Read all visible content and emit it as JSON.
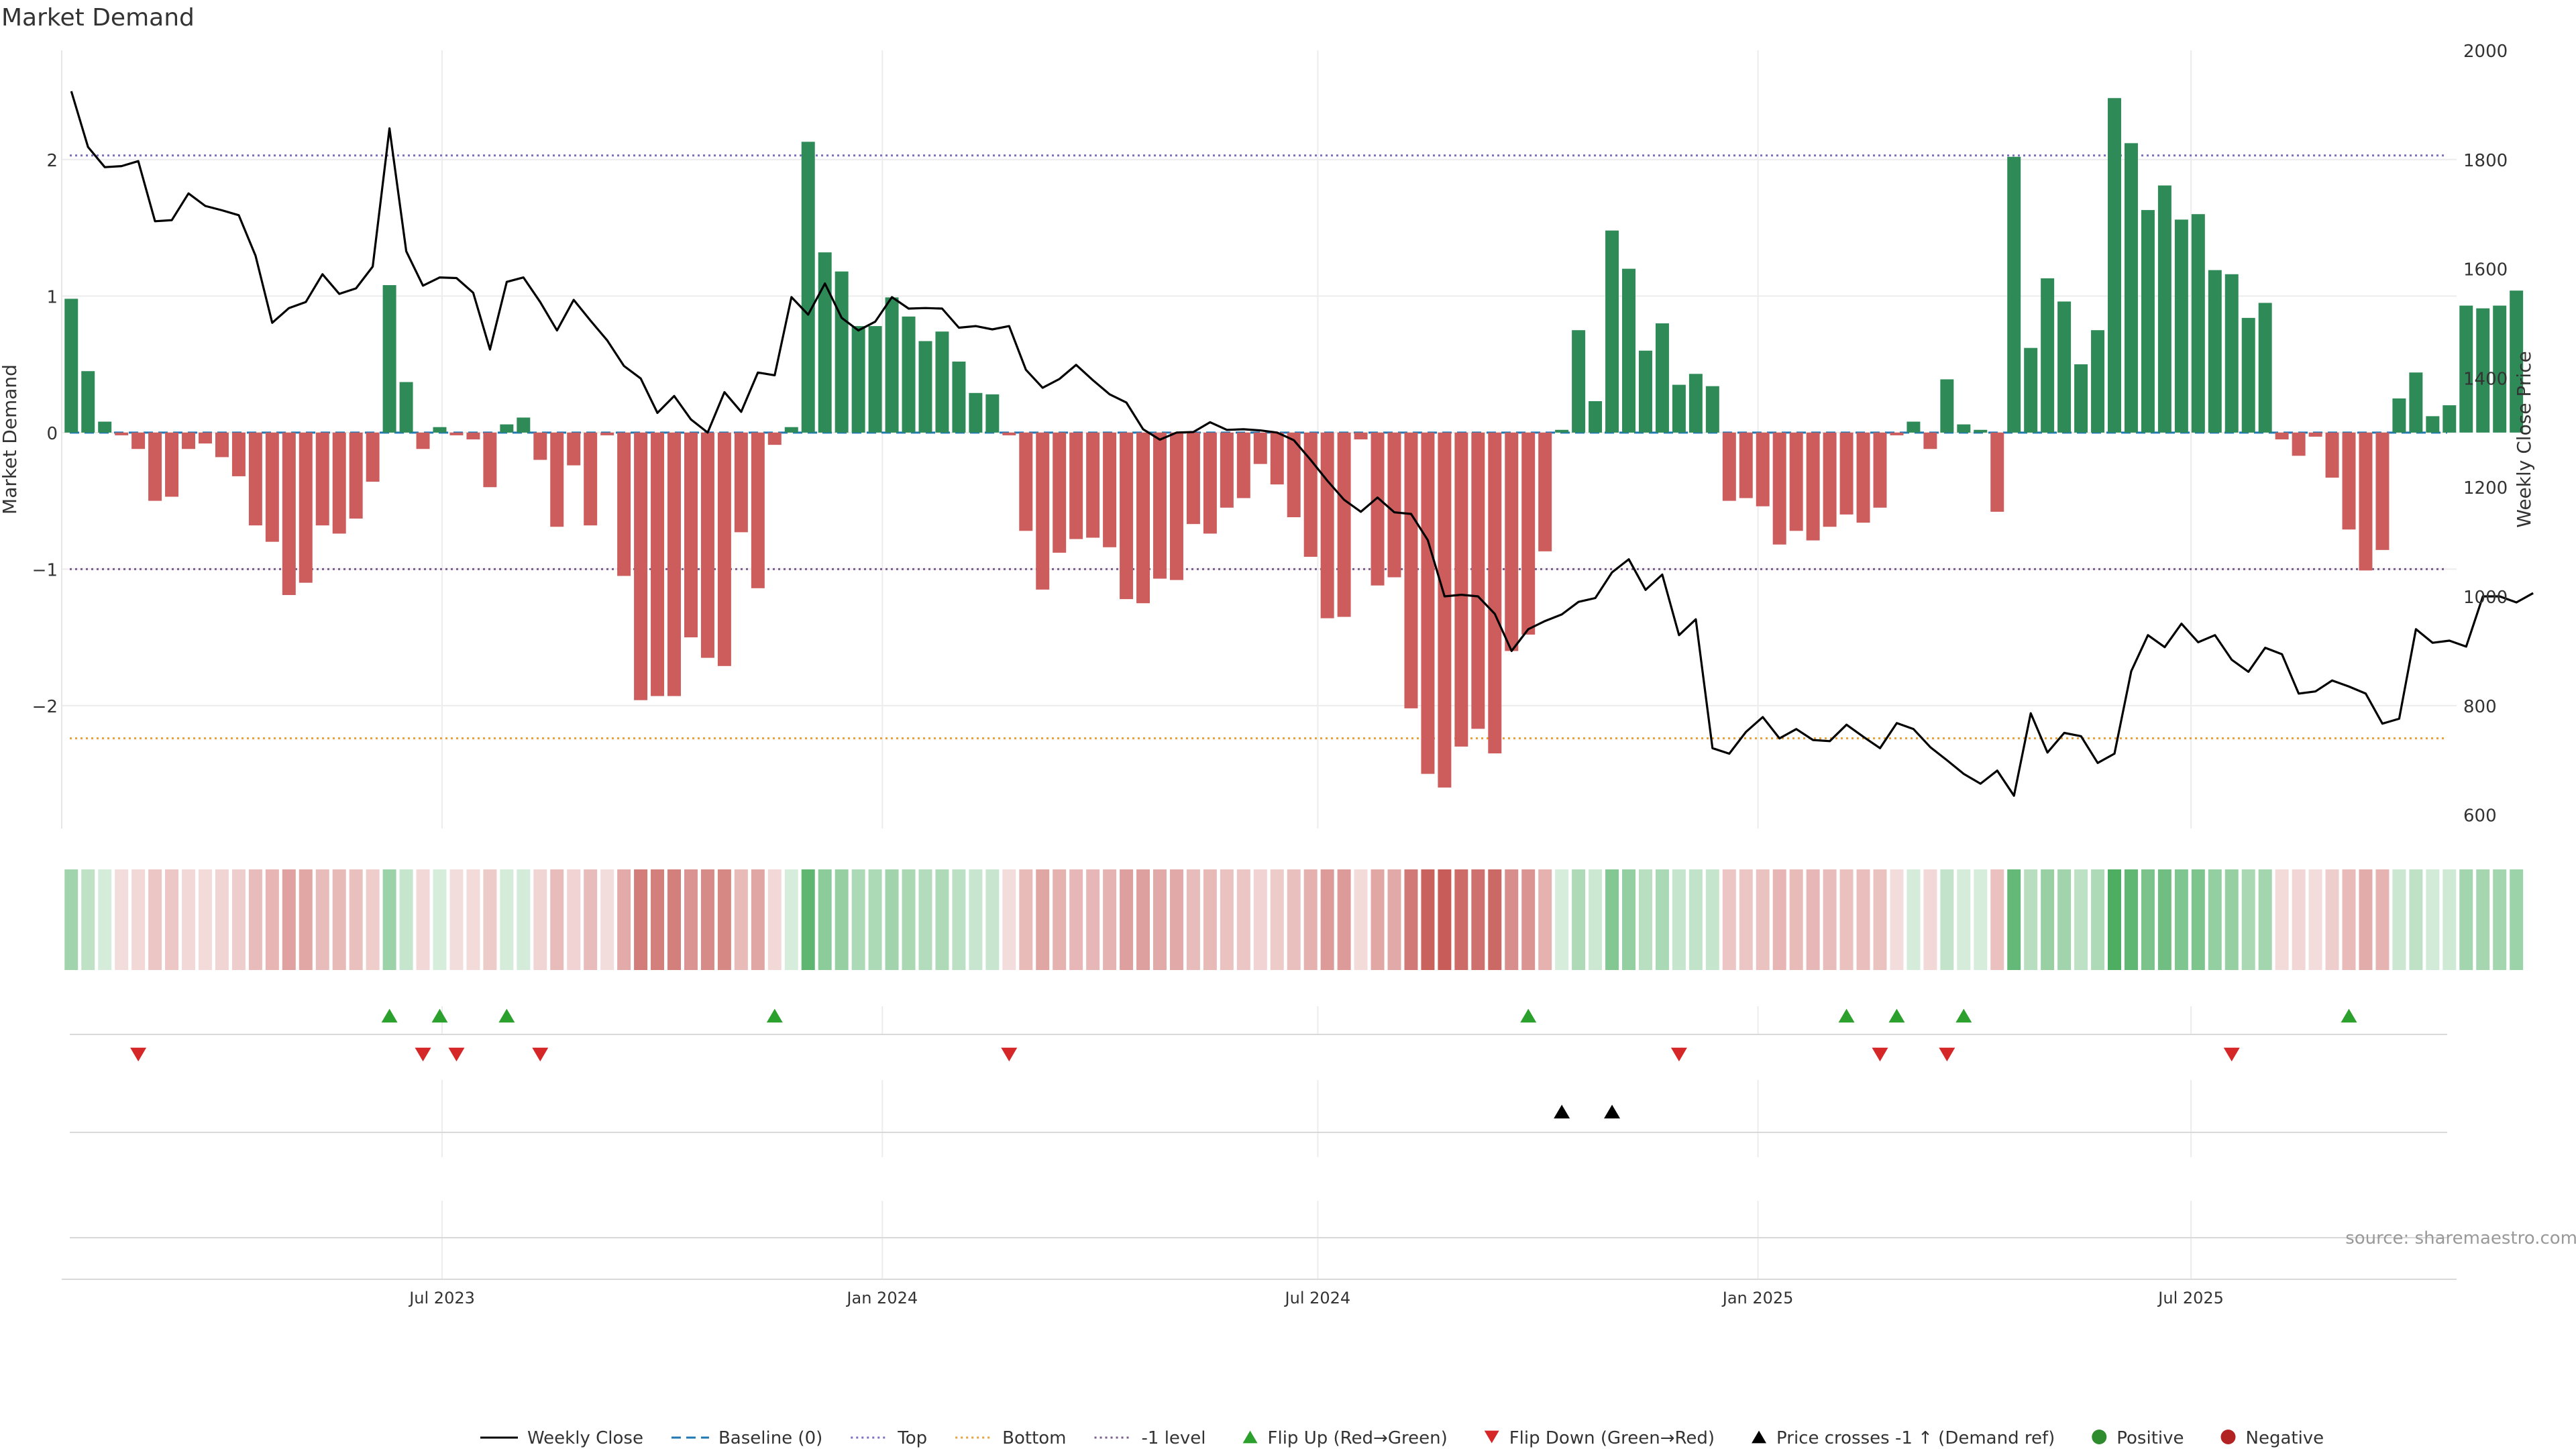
{
  "chart_data": {
    "type": "bar",
    "title": "Market Demand",
    "ylabel": "Market Demand",
    "y2label": "Weekly Close Price",
    "ylim": [
      -2.9,
      2.8
    ],
    "y2lim": [
      575,
      2000
    ],
    "yticks": [
      -2,
      -1,
      0,
      1,
      2
    ],
    "y2ticks": [
      600,
      800,
      1000,
      1200,
      1400,
      1600,
      1800,
      2000
    ],
    "xlim": [
      "2023-01-23",
      "2025-10-20"
    ],
    "xticks": [
      {
        "date": "2023-07-01",
        "label": "Jul 2023"
      },
      {
        "date": "2024-01-01",
        "label": "Jan 2024"
      },
      {
        "date": "2024-07-01",
        "label": "Jul 2024"
      },
      {
        "date": "2025-01-01",
        "label": "Jan 2025"
      },
      {
        "date": "2025-07-01",
        "label": "Jul 2025"
      }
    ],
    "start_date": "2023-01-27",
    "week_days": 7,
    "levels": {
      "top": 2.03,
      "bottom": -2.24,
      "minus_one": -1,
      "baseline": 0
    },
    "source": "source: sharemaestro.com",
    "legend": [
      {
        "label": "Weekly Close",
        "kind": "line",
        "color": "#000000"
      },
      {
        "label": "Baseline (0)",
        "kind": "dash",
        "color": "#1f77b4"
      },
      {
        "label": "Top",
        "kind": "dot",
        "color": "#7b6fc4"
      },
      {
        "label": "Bottom",
        "kind": "dot",
        "color": "#e8a23a"
      },
      {
        "label": "-1 level",
        "kind": "dot",
        "color": "#7a5c8a"
      },
      {
        "label": "Flip Up (Red→Green)",
        "kind": "tri-up",
        "color": "#2ca02c"
      },
      {
        "label": "Flip Down (Green→Red)",
        "kind": "tri-down",
        "color": "#d62728"
      },
      {
        "label": "Price crosses -1 ↑ (Demand ref)",
        "kind": "tri-up",
        "color": "#000000"
      },
      {
        "label": "Positive",
        "kind": "dot-marker",
        "color": "#2e8b2e"
      },
      {
        "label": "Negative",
        "kind": "dot-marker",
        "color": "#b22222"
      }
    ],
    "colors": {
      "positive": "#2e8b57",
      "negative": "#cd5c5c",
      "top": "#7b6fc4",
      "bottom": "#e8a23a",
      "minus_one": "#7a5c8a",
      "baseline": "#1f77b4"
    },
    "values": [
      0.98,
      0.45,
      0.08,
      -0.02,
      -0.12,
      -0.5,
      -0.47,
      -0.12,
      -0.08,
      -0.18,
      -0.32,
      -0.68,
      -0.8,
      -1.19,
      -1.1,
      -0.68,
      -0.74,
      -0.63,
      -0.36,
      1.08,
      0.37,
      -0.12,
      0.04,
      -0.02,
      -0.05,
      -0.4,
      0.06,
      0.11,
      -0.2,
      -0.69,
      -0.24,
      -0.68,
      -0.02,
      -1.05,
      -1.96,
      -1.93,
      -1.93,
      -1.5,
      -1.65,
      -1.71,
      -0.73,
      -1.14,
      -0.09,
      0.04,
      2.13,
      1.32,
      1.18,
      0.78,
      0.78,
      0.99,
      0.85,
      0.67,
      0.74,
      0.52,
      0.29,
      0.28,
      -0.02,
      -0.72,
      -1.15,
      -0.88,
      -0.78,
      -0.77,
      -0.84,
      -1.22,
      -1.25,
      -1.07,
      -1.08,
      -0.67,
      -0.74,
      -0.55,
      -0.48,
      -0.23,
      -0.38,
      -0.62,
      -0.91,
      -1.36,
      -1.35,
      -0.05,
      -1.12,
      -1.06,
      -2.02,
      -2.5,
      -2.6,
      -2.3,
      -2.17,
      -2.35,
      -1.6,
      -1.48,
      -0.87,
      0.02,
      0.75,
      0.23,
      1.48,
      1.2,
      0.6,
      0.8,
      0.35,
      0.43,
      0.34,
      -0.5,
      -0.48,
      -0.54,
      -0.82,
      -0.72,
      -0.79,
      -0.69,
      -0.6,
      -0.66,
      -0.55,
      -0.02,
      0.08,
      -0.12,
      0.39,
      0.06,
      0.02,
      -0.58,
      2.02,
      0.62,
      1.13,
      0.96,
      0.5,
      0.75,
      2.45,
      2.12,
      1.63,
      1.81,
      1.56,
      1.6,
      1.19,
      1.16,
      0.84,
      0.95,
      -0.05,
      -0.17,
      -0.03,
      -0.33,
      -0.71,
      -1.01,
      -0.86,
      0.25,
      0.44,
      0.12,
      0.2,
      0.93,
      0.91,
      0.93,
      1.04
    ],
    "weekly_close": [
      1925,
      1823,
      1786,
      1788,
      1797,
      1687,
      1689,
      1738,
      1715,
      1707,
      1698,
      1624,
      1501,
      1528,
      1539,
      1590,
      1554,
      1564,
      1604,
      1857,
      1632,
      1569,
      1584,
      1583,
      1556,
      1452,
      1576,
      1584,
      1539,
      1487,
      1543,
      1505,
      1469,
      1422,
      1399,
      1336,
      1367,
      1324,
      1300,
      1374,
      1338,
      1410,
      1405,
      1548,
      1516,
      1573,
      1510,
      1487,
      1503,
      1548,
      1527,
      1528,
      1527,
      1492,
      1495,
      1489,
      1495,
      1415,
      1382,
      1398,
      1424,
      1396,
      1370,
      1355,
      1306,
      1287,
      1300,
      1301,
      1319,
      1305,
      1306,
      1304,
      1300,
      1286,
      1250,
      1212,
      1177,
      1155,
      1181,
      1154,
      1151,
      1103,
      1000,
      1003,
      1000,
      968,
      900,
      940,
      955,
      967,
      990,
      997,
      1044,
      1068,
      1012,
      1040,
      929,
      958,
      722,
      712,
      752,
      779,
      740,
      757,
      737,
      735,
      765,
      743,
      722,
      768,
      757,
      724,
      700,
      675,
      657,
      681,
      635,
      786,
      714,
      750,
      744,
      695,
      712,
      863,
      929,
      907,
      950,
      916,
      929,
      884,
      862,
      906,
      894,
      822,
      826,
      846,
      835,
      822,
      767,
      776,
      940,
      915,
      919,
      908,
      1000,
      1000,
      989,
      1006
    ],
    "heat_boxes": true,
    "flip_up_index": [
      19,
      22,
      26,
      42,
      87,
      106,
      109,
      113,
      136
    ],
    "flip_down_index": [
      4,
      21,
      23,
      28,
      56,
      96,
      108,
      112,
      129
    ],
    "price_cross_index": [
      89,
      92
    ]
  }
}
